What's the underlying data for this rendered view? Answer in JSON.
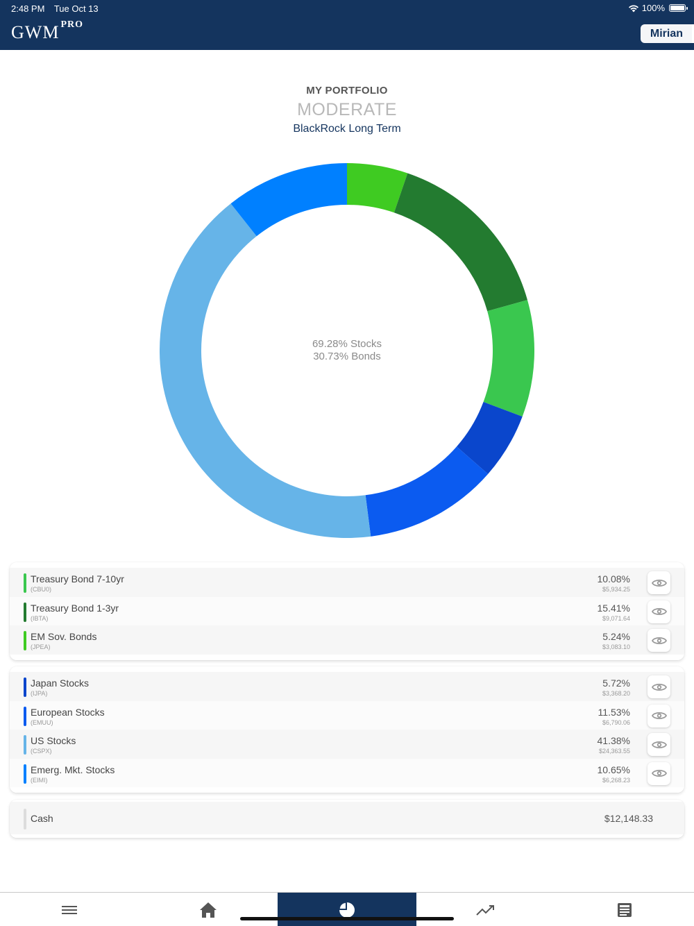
{
  "status_bar": {
    "time": "2:48 PM",
    "date": "Tue Oct 13",
    "battery": "100%"
  },
  "header": {
    "logo": "GWM",
    "logo_sup": "PRO",
    "user_name": "Mirian"
  },
  "portfolio": {
    "label": "MY PORTFOLIO",
    "profile": "MODERATE",
    "strategy": "BlackRock Long Term",
    "center_line1": "69.28% Stocks",
    "center_line2": "30.73% Bonds"
  },
  "chart_data": {
    "type": "pie",
    "donut": true,
    "slices": [
      {
        "label": "Treasury Bond 7-10yr",
        "value": 10.08,
        "color": "#3ac74f"
      },
      {
        "label": "Treasury Bond 1-3yr",
        "value": 15.41,
        "color": "#237b30"
      },
      {
        "label": "EM Sov. Bonds",
        "value": 5.24,
        "color": "#3fcb22"
      },
      {
        "label": "Japan Stocks",
        "value": 5.72,
        "color": "#0a46cc"
      },
      {
        "label": "European Stocks",
        "value": 11.53,
        "color": "#0b5bf0"
      },
      {
        "label": "US Stocks",
        "value": 41.38,
        "color": "#66b4e8"
      },
      {
        "label": "Emerg. Mkt. Stocks",
        "value": 10.65,
        "color": "#0080ff"
      }
    ],
    "chart_order": [
      "EM Sov. Bonds",
      "Treasury Bond 1-3yr",
      "Treasury Bond 7-10yr",
      "Japan Stocks",
      "European Stocks",
      "US Stocks",
      "Emerg. Mkt. Stocks"
    ]
  },
  "bonds": [
    {
      "name": "Treasury Bond 7-10yr",
      "ticker": "(CBU0)",
      "pct": "10.08%",
      "amount": "$5,934.25",
      "color": "#3ac74f"
    },
    {
      "name": "Treasury Bond 1-3yr",
      "ticker": "(IBTA)",
      "pct": "15.41%",
      "amount": "$9,071.64",
      "color": "#237b30"
    },
    {
      "name": "EM Sov. Bonds",
      "ticker": "(JPEA)",
      "pct": "5.24%",
      "amount": "$3,083.10",
      "color": "#3fcb22"
    }
  ],
  "stocks": [
    {
      "name": "Japan Stocks",
      "ticker": "(IJPA)",
      "pct": "5.72%",
      "amount": "$3,368.20",
      "color": "#0a46cc"
    },
    {
      "name": "European Stocks",
      "ticker": "(EMUU)",
      "pct": "11.53%",
      "amount": "$6,790.06",
      "color": "#0b5bf0"
    },
    {
      "name": "US Stocks",
      "ticker": "(CSPX)",
      "pct": "41.38%",
      "amount": "$24,363.55",
      "color": "#66b4e8"
    },
    {
      "name": "Emerg. Mkt. Stocks",
      "ticker": "(EIMI)",
      "pct": "10.65%",
      "amount": "$6,268.23",
      "color": "#0080ff"
    }
  ],
  "cash": {
    "name": "Cash",
    "value": "$12,148.33"
  },
  "nav": [
    {
      "icon": "menu-icon"
    },
    {
      "icon": "home-icon"
    },
    {
      "icon": "pie-chart-icon",
      "active": true
    },
    {
      "icon": "trend-icon"
    },
    {
      "icon": "news-icon"
    }
  ]
}
